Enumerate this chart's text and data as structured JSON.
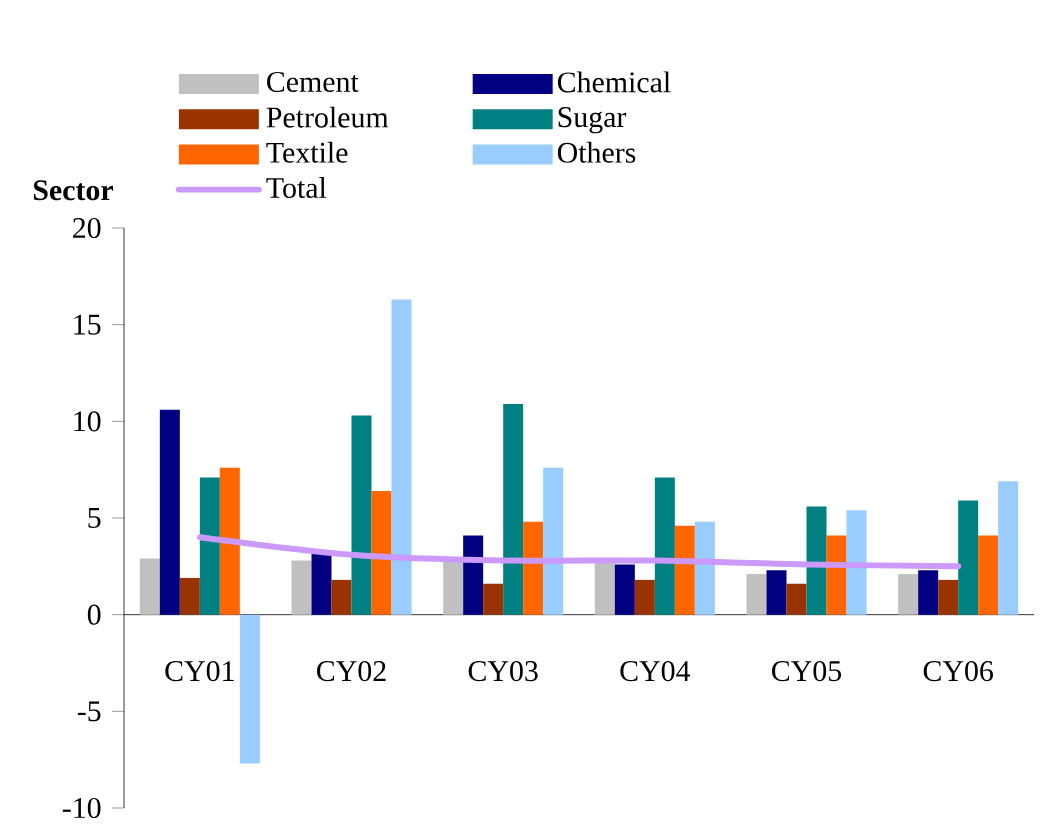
{
  "chart_data": {
    "type": "bar",
    "ylabel": "Sector",
    "categories": [
      "CY01",
      "CY02",
      "CY03",
      "CY04",
      "CY05",
      "CY06"
    ],
    "series": [
      {
        "name": "Cement",
        "color": "#c0c0c0",
        "values": [
          2.9,
          2.8,
          2.8,
          2.7,
          2.1,
          2.1
        ]
      },
      {
        "name": "Chemical",
        "color": "#000080",
        "values": [
          10.6,
          3.2,
          4.1,
          2.6,
          2.3,
          2.3
        ]
      },
      {
        "name": "Petroleum",
        "color": "#993300",
        "values": [
          1.9,
          1.8,
          1.6,
          1.8,
          1.6,
          1.8
        ]
      },
      {
        "name": "Sugar",
        "color": "#008080",
        "values": [
          7.1,
          10.3,
          10.9,
          7.1,
          5.6,
          5.9
        ]
      },
      {
        "name": "Textile",
        "color": "#ff6600",
        "values": [
          7.6,
          6.4,
          4.8,
          4.6,
          4.1,
          4.1
        ]
      },
      {
        "name": "Others",
        "color": "#99ccff",
        "values": [
          -7.7,
          16.3,
          7.6,
          4.8,
          5.4,
          6.9
        ]
      },
      {
        "name": "Total",
        "type": "line",
        "color": "#cc99ff",
        "values": [
          4.0,
          3.1,
          2.8,
          2.8,
          2.6,
          2.5
        ]
      }
    ],
    "ylim": [
      -10,
      20
    ],
    "yticks": [
      -10,
      -5,
      0,
      5,
      10,
      15,
      20
    ],
    "legend": "top"
  }
}
